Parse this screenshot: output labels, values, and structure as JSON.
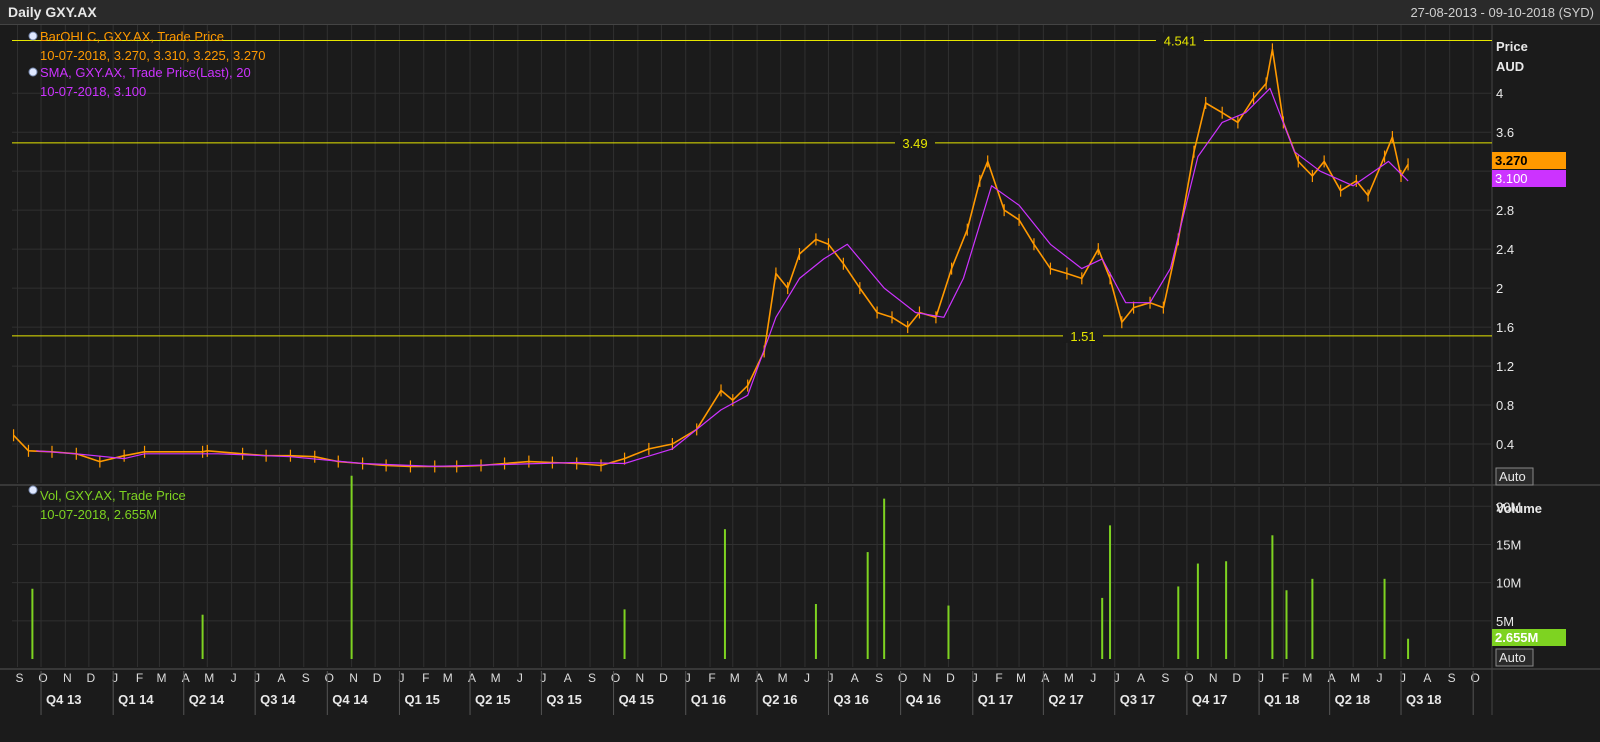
{
  "header": {
    "title": "Daily GXY.AX",
    "date_range": "27-08-2013 - 09-10-2018 (SYD)"
  },
  "colors": {
    "background": "#1b1b1b",
    "grid": "#303030",
    "price_bars": "#ff9900",
    "sma": "#cc33ff",
    "volume": "#7ed321",
    "hlines": "#e6e600",
    "text": "#e0e0e0"
  },
  "price_legend": {
    "ohlc_label": "BarOHLC, GXY.AX, Trade Price",
    "ohlc_values": "10-07-2018, 3.270, 3.310, 3.225, 3.270",
    "sma_label": "SMA, GXY.AX, Trade Price(Last),  20",
    "sma_values": "10-07-2018, 3.100"
  },
  "volume_legend": {
    "label": "Vol, GXY.AX, Trade Price",
    "values": "10-07-2018, 2.655M"
  },
  "price_axis": {
    "title_line1": "Price",
    "title_line2": "AUD",
    "auto_button": "Auto",
    "current_price_tag": "3.270",
    "current_sma_tag": "3.100"
  },
  "volume_axis": {
    "title": "Volume",
    "auto_button": "Auto",
    "current_volume_tag": "2.655M"
  },
  "chart_data": [
    {
      "type": "line",
      "panel": "price",
      "ylabel": "Price AUD",
      "ylim": [
        0.0,
        4.7
      ],
      "yticks": [
        0.4,
        0.8,
        1.2,
        1.6,
        2,
        2.4,
        2.8,
        3.2,
        3.6,
        4
      ],
      "ytick_labels": [
        "0.4",
        "0.8",
        "1.2",
        "1.6",
        "2",
        "2.4",
        "2.8",
        "",
        "3.6",
        "4"
      ],
      "grid": true,
      "x_months": [
        "S",
        "O",
        "N",
        "D",
        "J",
        "F",
        "M",
        "A",
        "M",
        "J",
        "J",
        "A",
        "S",
        "O",
        "N",
        "D",
        "J",
        "F",
        "M",
        "A",
        "M",
        "J",
        "J",
        "A",
        "S",
        "O",
        "N",
        "D",
        "J",
        "F",
        "M",
        "A",
        "M",
        "J",
        "J",
        "A",
        "S",
        "O",
        "N",
        "D",
        "J",
        "F",
        "M",
        "A",
        "M",
        "J",
        "J",
        "A",
        "S",
        "O",
        "N",
        "D",
        "J",
        "F",
        "M",
        "A",
        "M",
        "J",
        "J",
        "A",
        "S",
        "O"
      ],
      "x_quarters": [
        "Q4 13",
        "Q1 14",
        "Q2 14",
        "Q3 14",
        "Q4 14",
        "Q1 15",
        "Q2 15",
        "Q3 15",
        "Q4 15",
        "Q1 16",
        "Q2 16",
        "Q3 16",
        "Q4 16",
        "Q1 17",
        "Q2 17",
        "Q3 17",
        "Q4 17",
        "Q1 18",
        "Q2 18",
        "Q3 18"
      ],
      "horizontal_lines": [
        4.541,
        3.49,
        1.51
      ],
      "horizontal_line_labels": [
        "4.541",
        "3.49",
        "1.51"
      ],
      "series": [
        {
          "name": "BarOHLC, GXY.AX, Trade Price",
          "x": [
            "2013-08-27",
            "2013-09-15",
            "2013-10-15",
            "2013-11-15",
            "2013-12-15",
            "2014-01-15",
            "2014-02-10",
            "2014-04-25",
            "2014-05-01",
            "2014-06-15",
            "2014-07-15",
            "2014-08-15",
            "2014-09-15",
            "2014-10-15",
            "2014-11-15",
            "2014-12-15",
            "2015-01-15",
            "2015-02-15",
            "2015-03-15",
            "2015-04-15",
            "2015-05-15",
            "2015-06-15",
            "2015-07-15",
            "2015-08-15",
            "2015-09-15",
            "2015-10-15",
            "2015-11-15",
            "2015-12-15",
            "2016-01-15",
            "2016-02-15",
            "2016-03-01",
            "2016-03-20",
            "2016-04-10",
            "2016-04-25",
            "2016-05-10",
            "2016-05-25",
            "2016-06-15",
            "2016-07-01",
            "2016-07-20",
            "2016-08-10",
            "2016-09-01",
            "2016-09-20",
            "2016-10-10",
            "2016-10-25",
            "2016-11-15",
            "2016-12-05",
            "2016-12-25",
            "2017-01-10",
            "2017-01-20",
            "2017-02-10",
            "2017-03-01",
            "2017-03-20",
            "2017-04-10",
            "2017-05-01",
            "2017-05-20",
            "2017-06-10",
            "2017-06-25",
            "2017-07-10",
            "2017-07-25",
            "2017-08-15",
            "2017-09-01",
            "2017-09-20",
            "2017-10-10",
            "2017-10-25",
            "2017-11-15",
            "2017-12-05",
            "2017-12-25",
            "2018-01-10",
            "2018-01-18",
            "2018-02-01",
            "2018-02-20",
            "2018-03-10",
            "2018-03-25",
            "2018-04-15",
            "2018-05-05",
            "2018-05-20",
            "2018-06-10",
            "2018-06-20",
            "2018-07-01",
            "2018-07-10"
          ],
          "values": [
            0.49,
            0.33,
            0.32,
            0.3,
            0.22,
            0.28,
            0.32,
            0.32,
            0.33,
            0.3,
            0.28,
            0.28,
            0.27,
            0.22,
            0.2,
            0.18,
            0.17,
            0.17,
            0.17,
            0.18,
            0.2,
            0.22,
            0.21,
            0.2,
            0.18,
            0.25,
            0.35,
            0.4,
            0.55,
            0.95,
            0.85,
            1.0,
            1.35,
            2.15,
            2.0,
            2.35,
            2.5,
            2.45,
            2.25,
            2.0,
            1.75,
            1.7,
            1.6,
            1.75,
            1.7,
            2.2,
            2.6,
            3.1,
            3.3,
            2.8,
            2.7,
            2.45,
            2.2,
            2.15,
            2.1,
            2.4,
            2.1,
            1.65,
            1.8,
            1.85,
            1.8,
            2.5,
            3.4,
            3.9,
            3.8,
            3.7,
            3.95,
            4.1,
            4.45,
            3.7,
            3.3,
            3.15,
            3.3,
            3.0,
            3.1,
            2.95,
            3.35,
            3.55,
            3.15,
            3.27
          ]
        },
        {
          "name": "SMA, GXY.AX, Trade Price(Last),  20",
          "x": [
            "2013-09-25",
            "2013-11-15",
            "2014-01-15",
            "2014-02-10",
            "2014-05-15",
            "2014-08-15",
            "2014-11-15",
            "2015-02-15",
            "2015-05-15",
            "2015-08-15",
            "2015-10-15",
            "2015-12-15",
            "2016-02-15",
            "2016-03-20",
            "2016-04-25",
            "2016-05-25",
            "2016-06-25",
            "2016-07-25",
            "2016-09-10",
            "2016-10-20",
            "2016-11-25",
            "2016-12-20",
            "2017-01-25",
            "2017-03-01",
            "2017-04-10",
            "2017-05-20",
            "2017-06-15",
            "2017-07-15",
            "2017-08-15",
            "2017-09-10",
            "2017-10-15",
            "2017-11-15",
            "2017-12-15",
            "2018-01-15",
            "2018-02-15",
            "2018-03-20",
            "2018-05-01",
            "2018-06-15",
            "2018-07-10"
          ],
          "values": [
            0.33,
            0.3,
            0.25,
            0.3,
            0.3,
            0.27,
            0.2,
            0.17,
            0.19,
            0.21,
            0.2,
            0.35,
            0.75,
            0.9,
            1.7,
            2.1,
            2.3,
            2.45,
            2.0,
            1.75,
            1.7,
            2.1,
            3.05,
            2.85,
            2.45,
            2.2,
            2.3,
            1.85,
            1.85,
            2.2,
            3.35,
            3.7,
            3.8,
            4.05,
            3.4,
            3.2,
            3.05,
            3.3,
            3.1
          ]
        }
      ]
    },
    {
      "type": "bar",
      "panel": "volume",
      "ylabel": "Volume",
      "ylim": [
        0,
        22
      ],
      "yticks": [
        5,
        10,
        15,
        20
      ],
      "ytick_labels": [
        "5M",
        "10M",
        "15M",
        "20M"
      ],
      "grid": true,
      "series": [
        {
          "name": "Vol, GXY.AX, Trade Price",
          "x": [
            "2013-09-20",
            "2014-04-25",
            "2014-11-01",
            "2015-10-15",
            "2016-02-20",
            "2016-06-15",
            "2016-08-20",
            "2016-09-10",
            "2016-12-01",
            "2017-06-15",
            "2017-06-25",
            "2017-09-20",
            "2017-10-15",
            "2017-11-20",
            "2018-01-18",
            "2018-02-05",
            "2018-03-10",
            "2018-06-10",
            "2018-07-10"
          ],
          "values": [
            9.2,
            5.8,
            24.0,
            6.5,
            17.0,
            7.2,
            14.0,
            21.0,
            7.0,
            8.0,
            17.5,
            9.5,
            12.5,
            12.8,
            16.2,
            9.0,
            10.5,
            10.5,
            2.655
          ]
        }
      ]
    }
  ]
}
